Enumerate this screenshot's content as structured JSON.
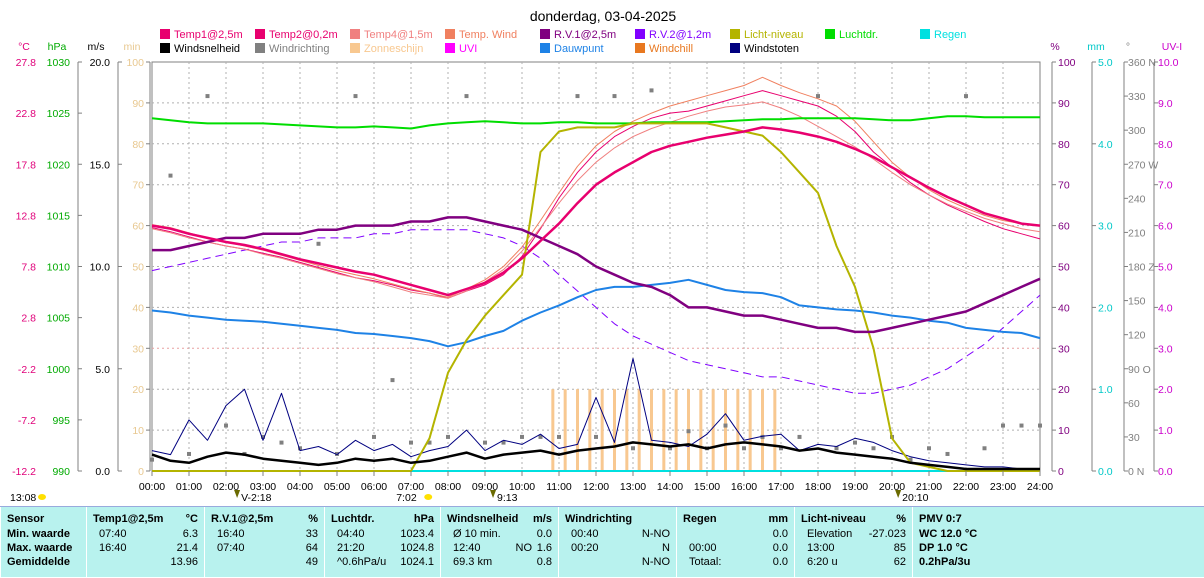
{
  "chart_data": {
    "type": "line",
    "title": "donderdag, 03-04-2025",
    "x": [
      "00:00",
      "00:30",
      "01:00",
      "01:30",
      "02:00",
      "02:30",
      "03:00",
      "03:30",
      "04:00",
      "04:30",
      "05:00",
      "05:30",
      "06:00",
      "06:30",
      "07:00",
      "07:30",
      "08:00",
      "08:30",
      "09:00",
      "09:30",
      "10:00",
      "10:30",
      "11:00",
      "11:30",
      "12:00",
      "12:30",
      "13:00",
      "13:30",
      "14:00",
      "14:30",
      "15:00",
      "15:30",
      "16:00",
      "16:30",
      "17:00",
      "17:30",
      "18:00",
      "18:30",
      "19:00",
      "19:30",
      "20:00",
      "20:30",
      "21:00",
      "21:30",
      "22:00",
      "22:30",
      "23:00",
      "23:30",
      "24:00"
    ],
    "x_ticks": [
      "00:00",
      "01:00",
      "02:00",
      "03:00",
      "04:00",
      "05:00",
      "06:00",
      "07:00",
      "08:00",
      "09:00",
      "10:00",
      "11:00",
      "12:00",
      "13:00",
      "14:00",
      "15:00",
      "16:00",
      "17:00",
      "18:00",
      "19:00",
      "20:00",
      "21:00",
      "22:00",
      "23:00",
      "24:00"
    ],
    "grid": true,
    "axes": {
      "temp": {
        "unit": "°C",
        "ylim": [
          -12.2,
          27.8
        ],
        "ticks": [
          "27.8",
          "22.8",
          "17.8",
          "12.8",
          "7.8",
          "2.8",
          "-2.2",
          "-7.2",
          "-12.2"
        ],
        "color": "#e0007a"
      },
      "pressure": {
        "unit": "hPa",
        "ylim": [
          990,
          1030
        ],
        "ticks": [
          "1030",
          "1025",
          "1020",
          "1015",
          "1010",
          "1005",
          "1000",
          "995",
          "990"
        ],
        "color": "#00aa00"
      },
      "wind": {
        "unit": "m/s",
        "ylim": [
          0,
          20
        ],
        "ticks": [
          "20.0",
          "15.0",
          "10.0",
          "5.0",
          "0.0"
        ],
        "color": "#000000"
      },
      "light": {
        "unit": "min",
        "ylim": [
          0,
          100
        ],
        "ticks": [
          "100",
          "90",
          "80",
          "70",
          "60",
          "50",
          "40",
          "30",
          "20",
          "10",
          "0"
        ],
        "color": "#e8c890"
      },
      "humidity": {
        "unit": "%",
        "ylim": [
          0,
          100
        ],
        "ticks": [
          "100",
          "90",
          "80",
          "70",
          "60",
          "50",
          "40",
          "30",
          "20",
          "10",
          "0"
        ],
        "color": "#800080"
      },
      "rain": {
        "unit": "mm",
        "ylim": [
          0,
          5
        ],
        "ticks": [
          "5.0",
          "4.0",
          "3.0",
          "2.0",
          "1.0",
          "0.0"
        ],
        "color": "#00c8c8"
      },
      "direction": {
        "unit": "°",
        "ylim": [
          0,
          360
        ],
        "ticks": [
          "360 N",
          "330",
          "300",
          "270 W",
          "240",
          "210",
          "180 Z",
          "150",
          "120",
          "90 O",
          "60",
          "30",
          "0 N"
        ],
        "color": "#808080"
      },
      "uv": {
        "unit": "UV-I",
        "ylim": [
          0,
          10
        ],
        "ticks": [
          "10.0",
          "9.0",
          "8.0",
          "7.0",
          "6.0",
          "5.0",
          "4.0",
          "3.0",
          "2.0",
          "1.0",
          "0.0"
        ],
        "color": "#cc00cc"
      }
    },
    "legend": [
      {
        "name": "Temp1@2,5m",
        "color": "#e8006e"
      },
      {
        "name": "Temp2@0,2m",
        "color": "#e8006e"
      },
      {
        "name": "Temp4@1,5m",
        "color": "#f08080"
      },
      {
        "name": "Temp. Wind",
        "color": "#f08060"
      },
      {
        "name": "R.V.1@2,5m",
        "color": "#800080"
      },
      {
        "name": "R.V.2@1,2m",
        "color": "#8000ff"
      },
      {
        "name": "Licht-niveau",
        "color": "#b4b400"
      },
      {
        "name": "Luchtdr.",
        "color": "#00dd00"
      },
      {
        "name": "Regen",
        "color": "#00e0e0"
      },
      {
        "name": "Windsnelheid",
        "color": "#000000"
      },
      {
        "name": "Windrichting",
        "color": "#808080"
      },
      {
        "name": "Zonneschijn",
        "color": "#f8c890"
      },
      {
        "name": "UVI",
        "color": "#ff00ff"
      },
      {
        "name": "Dauwpunt",
        "color": "#1e82e6"
      },
      {
        "name": "Windchill",
        "color": "#e87820"
      },
      {
        "name": "Windstoten",
        "color": "#000080"
      }
    ],
    "series": [
      {
        "name": "Temp1@2,5m",
        "axis": "temp",
        "color": "#e8006e",
        "width": 2.5,
        "values": [
          11.8,
          11.5,
          11.0,
          10.6,
          10.2,
          9.9,
          9.5,
          9.0,
          8.5,
          8.1,
          7.7,
          7.3,
          7.0,
          6.5,
          6.0,
          5.5,
          5.0,
          5.6,
          6.2,
          7.2,
          8.6,
          10.3,
          12.0,
          14.0,
          15.8,
          17.0,
          18.0,
          19.0,
          19.6,
          20.0,
          20.4,
          20.7,
          21.0,
          21.4,
          21.2,
          20.9,
          20.5,
          20.0,
          19.3,
          18.5,
          17.5,
          16.5,
          15.5,
          14.6,
          13.8,
          13.0,
          12.5,
          12.0,
          11.8
        ]
      },
      {
        "name": "Temp2@0,2m",
        "axis": "temp",
        "color": "#e8006e",
        "width": 1,
        "values": [
          11.6,
          11.2,
          10.7,
          10.2,
          9.8,
          9.5,
          9.1,
          8.7,
          8.2,
          7.7,
          7.2,
          6.7,
          6.4,
          6.0,
          5.5,
          5.2,
          4.7,
          5.4,
          6.0,
          7.0,
          8.8,
          11.5,
          14.5,
          17.0,
          19.0,
          20.5,
          21.5,
          22.3,
          22.8,
          23.0,
          23.5,
          24.0,
          24.5,
          25.0,
          24.5,
          24.0,
          23.5,
          22.5,
          21.0,
          19.0,
          17.5,
          16.0,
          14.8,
          13.8,
          13.0,
          12.2,
          11.5,
          11.0,
          10.5
        ]
      },
      {
        "name": "Temp4@1,5m",
        "axis": "temp",
        "color": "#f08080",
        "width": 1,
        "values": [
          11.5,
          11.1,
          10.6,
          10.2,
          9.8,
          9.5,
          9.0,
          8.6,
          8.1,
          7.6,
          7.1,
          6.7,
          6.3,
          5.8,
          5.3,
          5.0,
          4.7,
          5.4,
          6.3,
          7.5,
          9.3,
          11.6,
          14.0,
          16.2,
          18.0,
          19.4,
          20.5,
          21.3,
          21.9,
          22.5,
          23.0,
          23.4,
          23.6,
          23.9,
          23.3,
          22.5,
          21.5,
          20.5,
          19.5,
          18.3,
          17.0,
          15.8,
          14.8,
          13.9,
          13.2,
          12.5,
          12.0,
          11.5,
          11.2
        ]
      },
      {
        "name": "Temp. Wind",
        "axis": "temp",
        "color": "#f08060",
        "width": 1,
        "values": [
          11.9,
          11.6,
          11.1,
          10.6,
          10.2,
          9.8,
          9.4,
          8.9,
          8.4,
          7.9,
          7.4,
          7.0,
          6.6,
          6.1,
          5.6,
          5.2,
          4.8,
          5.6,
          6.5,
          7.8,
          9.7,
          12.3,
          15.0,
          17.6,
          19.6,
          21.0,
          22.0,
          22.8,
          23.5,
          24.0,
          24.5,
          25.0,
          25.5,
          26.3,
          25.5,
          24.8,
          24.2,
          23.5,
          22.0,
          20.0,
          18.0,
          16.5,
          15.3,
          14.3,
          13.5,
          12.8,
          12.3,
          12.0,
          11.8
        ]
      },
      {
        "name": "R.V.1@2,5m",
        "axis": "humidity",
        "color": "#800080",
        "width": 2.5,
        "values": [
          54,
          54,
          55,
          56,
          57,
          57,
          58,
          58,
          58,
          59,
          59,
          60,
          60,
          60,
          61,
          61,
          62,
          62,
          61,
          60,
          59,
          57,
          55,
          53,
          50,
          48,
          46,
          45,
          43,
          40,
          40,
          39,
          38,
          38,
          37,
          36,
          35,
          35,
          34,
          34,
          35,
          36,
          37,
          38,
          39,
          41,
          43,
          45,
          47
        ]
      },
      {
        "name": "R.V.2@1,2m",
        "axis": "humidity",
        "color": "#8000ff",
        "width": 1,
        "dashed": true,
        "values": [
          49,
          50,
          51,
          52,
          53,
          54,
          55,
          56,
          56,
          57,
          57,
          57,
          58,
          58,
          59,
          59,
          59,
          59,
          58,
          57,
          55,
          52,
          48,
          44,
          40,
          36,
          33,
          31,
          29,
          27,
          26,
          25,
          24,
          23,
          23,
          22,
          21,
          20,
          19,
          19,
          20,
          21,
          23,
          25,
          28,
          31,
          35,
          39,
          43
        ]
      },
      {
        "name": "Luchtdr.",
        "axis": "pressure",
        "color": "#00dd00",
        "width": 2,
        "values": [
          1024.5,
          1024.3,
          1024.1,
          1024.0,
          1024.0,
          1024.0,
          1024.0,
          1023.9,
          1023.8,
          1023.7,
          1023.6,
          1023.6,
          1023.7,
          1023.6,
          1023.5,
          1023.8,
          1024.0,
          1024.1,
          1024.2,
          1024.1,
          1024.0,
          1024.0,
          1024.1,
          1024.1,
          1024.0,
          1024.0,
          1024.0,
          1024.1,
          1024.1,
          1024.1,
          1024.1,
          1024.2,
          1024.3,
          1024.4,
          1024.4,
          1024.5,
          1024.5,
          1024.5,
          1024.5,
          1024.4,
          1024.3,
          1024.3,
          1024.5,
          1024.7,
          1024.7,
          1024.6,
          1024.6,
          1024.6,
          1024.6
        ]
      },
      {
        "name": "Dauwpunt",
        "axis": "temp",
        "color": "#1e82e6",
        "width": 2,
        "values": [
          3.5,
          3.3,
          3.0,
          2.8,
          2.6,
          2.5,
          2.4,
          2.2,
          2.0,
          1.8,
          1.6,
          1.3,
          1.2,
          1.0,
          0.8,
          0.5,
          0.0,
          0.4,
          1.0,
          1.5,
          2.5,
          3.3,
          4.0,
          4.8,
          5.5,
          5.8,
          5.8,
          6.0,
          6.2,
          6.5,
          6.0,
          5.5,
          5.3,
          5.2,
          4.8,
          4.0,
          3.8,
          3.6,
          3.5,
          3.3,
          3.0,
          2.8,
          2.5,
          2.3,
          1.8,
          1.6,
          1.4,
          1.3,
          0.8
        ]
      },
      {
        "name": "Licht-niveau",
        "axis": "light",
        "color": "#b4b400",
        "width": 2,
        "values": [
          0,
          0,
          0,
          0,
          0,
          0,
          0,
          0,
          0,
          0,
          0,
          0,
          0,
          0,
          0,
          8,
          24,
          32,
          38,
          43,
          48,
          78,
          83,
          84,
          84,
          84,
          85,
          85,
          85,
          85,
          85,
          84,
          83,
          82,
          78,
          73,
          68,
          55,
          45,
          30,
          8,
          2,
          1,
          0,
          0,
          0,
          0,
          0,
          0
        ]
      },
      {
        "name": "Windsnelheid",
        "axis": "wind",
        "color": "#000000",
        "width": 2.5,
        "values": [
          0.8,
          0.5,
          0.4,
          0.7,
          0.9,
          0.8,
          0.6,
          0.5,
          0.4,
          0.3,
          0.4,
          0.6,
          0.5,
          0.6,
          0.4,
          0.5,
          0.7,
          0.9,
          0.6,
          0.8,
          0.9,
          1.0,
          0.8,
          1.0,
          1.1,
          1.2,
          1.4,
          1.3,
          1.2,
          1.3,
          1.1,
          1.3,
          1.4,
          1.3,
          1.2,
          1.0,
          1.1,
          0.9,
          0.8,
          0.7,
          0.6,
          0.4,
          0.3,
          0.2,
          0.1,
          0.1,
          0.1,
          0.1,
          0.1
        ]
      },
      {
        "name": "Windstoten",
        "axis": "wind",
        "color": "#000080",
        "width": 1,
        "values": [
          1.0,
          0.8,
          2.5,
          1.5,
          3.2,
          4.0,
          1.5,
          3.8,
          1.0,
          1.2,
          0.8,
          1.5,
          1.0,
          1.3,
          0.7,
          1.0,
          1.2,
          2.0,
          1.0,
          1.5,
          1.3,
          1.8,
          1.1,
          1.3,
          3.6,
          1.4,
          5.5,
          1.5,
          1.4,
          1.2,
          1.8,
          2.8,
          1.5,
          1.7,
          1.8,
          1.0,
          1.3,
          1.2,
          1.6,
          1.4,
          1.0,
          0.7,
          0.5,
          0.4,
          0.3,
          0.2,
          0.2,
          0.1,
          0.1
        ]
      },
      {
        "name": "Regen",
        "axis": "rain",
        "color": "#00e0e0",
        "width": 2,
        "values": [
          0,
          0,
          0,
          0,
          0,
          0,
          0,
          0,
          0,
          0,
          0,
          0,
          0,
          0,
          0,
          0,
          0,
          0,
          0,
          0,
          0,
          0,
          0,
          0,
          0,
          0,
          0,
          0,
          0,
          0,
          0,
          0,
          0,
          0,
          0,
          0,
          0,
          0,
          0,
          0,
          0,
          0,
          0,
          0,
          0,
          0,
          0,
          0,
          0
        ]
      }
    ],
    "windrichting": {
      "axis": "direction",
      "color": "#808080",
      "values": [
        10,
        260,
        15,
        330,
        40,
        15,
        30,
        25,
        20,
        200,
        15,
        330,
        30,
        80,
        25,
        25,
        30,
        330,
        25,
        25,
        30,
        30,
        30,
        330,
        30,
        330,
        20,
        335,
        20,
        35,
        20,
        40,
        20,
        30,
        20,
        30,
        330,
        20,
        25,
        20,
        30,
        10,
        20,
        15,
        330,
        20,
        40,
        40,
        40
      ]
    },
    "zonneschijn": {
      "axis": "light",
      "color": "#f8c890",
      "x": [
        "10:50",
        "11:10",
        "11:30",
        "11:50",
        "12:10",
        "12:30",
        "12:50",
        "13:10",
        "13:30",
        "13:50",
        "14:10",
        "14:30",
        "14:50",
        "15:10",
        "15:30",
        "15:50",
        "16:10",
        "16:30",
        "16:50"
      ],
      "values": [
        20,
        20,
        20,
        20,
        20,
        20,
        20,
        20,
        20,
        20,
        20,
        20,
        20,
        20,
        20,
        20,
        20,
        20,
        20
      ]
    },
    "markers": [
      {
        "time": "02:18",
        "label": "V-2:18",
        "axis": "top"
      },
      {
        "time": "09:13",
        "label": "9:13",
        "axis": "top"
      },
      {
        "time": "20:10",
        "label": "20:10",
        "axis": "top"
      }
    ],
    "sun_markers": [
      {
        "time": "07:02",
        "label": "7:02"
      },
      {
        "time": "13:08",
        "label": "13:08"
      }
    ]
  },
  "stats": {
    "sensor": {
      "title": "Sensor",
      "rows": [
        "Min. waarde",
        "Max. waarde",
        "Gemiddelde"
      ]
    },
    "temp": {
      "title": "Temp1@2,5m",
      "unit": "°C",
      "rows": [
        {
          "t": "07:40",
          "v": "6.3"
        },
        {
          "t": "16:40",
          "v": "21.4"
        },
        {
          "t": "",
          "v": "13.96"
        }
      ]
    },
    "rv": {
      "title": "R.V.1@2,5m",
      "unit": "%",
      "rows": [
        {
          "t": "16:40",
          "v": "33"
        },
        {
          "t": "07:40",
          "v": "64"
        },
        {
          "t": "",
          "v": "49"
        }
      ]
    },
    "luchtdr": {
      "title": "Luchtdr.",
      "unit": "hPa",
      "rows": [
        {
          "t": "04:40",
          "v": "1023.4"
        },
        {
          "t": "21:20",
          "v": "1024.8"
        },
        {
          "t": "^0.6hPa/u",
          "v": "1024.1"
        }
      ]
    },
    "wind": {
      "title": "Windsnelheid",
      "unit": "m/s",
      "rows": [
        {
          "t": "Ø 10 min.",
          "v": "0.0"
        },
        {
          "t": "12:40",
          "m": "NO",
          "v": "1.6"
        },
        {
          "t": "69.3 km",
          "v": "0.8"
        }
      ]
    },
    "windrichting": {
      "title": "Windrichting",
      "rows": [
        {
          "t": "00:40",
          "v": "N-NO"
        },
        {
          "t": "00:20",
          "v": "N"
        },
        {
          "t": "",
          "v": "N-NO"
        }
      ]
    },
    "regen": {
      "title": "Regen",
      "unit": "mm",
      "rows": [
        {
          "t": "",
          "v": "0.0"
        },
        {
          "t": "00:00",
          "v": "0.0"
        },
        {
          "t": "Totaal:",
          "v": "0.0"
        }
      ]
    },
    "licht": {
      "title": "Licht-niveau",
      "unit": "%",
      "rows": [
        {
          "t": "Elevation",
          "v": "-27.023"
        },
        {
          "t": "13:00",
          "v": "85"
        },
        {
          "t": "6:20 u",
          "v": "62"
        }
      ]
    },
    "pmv": {
      "title": "PMV 0:7",
      "rows": [
        "WC 12.0 °C",
        "DP 1.0 °C",
        "0.2hPa/3u"
      ]
    }
  }
}
